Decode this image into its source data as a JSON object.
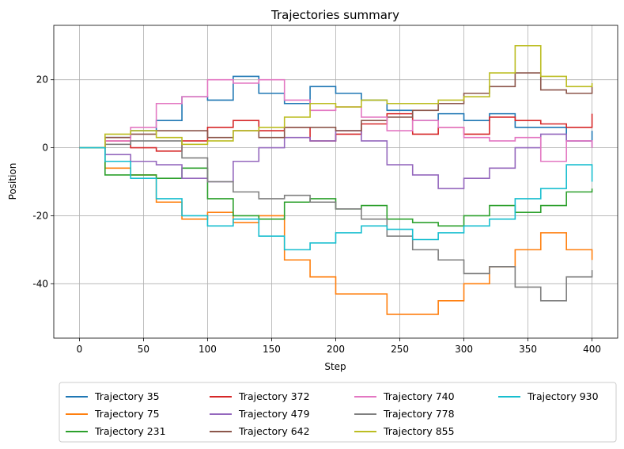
{
  "chart_data": {
    "type": "line",
    "title": "Trajectories summary",
    "xlabel": "Step",
    "ylabel": "Position",
    "xlim": [
      -20,
      420
    ],
    "ylim": [
      -56,
      36
    ],
    "xticks": [
      0,
      50,
      100,
      150,
      200,
      250,
      300,
      350,
      400
    ],
    "yticks": [
      -40,
      -20,
      0,
      20
    ],
    "grid": true,
    "step_style": true,
    "legend": {
      "placement": "below-center",
      "columns": 4
    },
    "series": [
      {
        "name": "Trajectory 35",
        "color": "#1f77b4",
        "x": [
          0,
          20,
          40,
          60,
          80,
          100,
          120,
          140,
          160,
          180,
          200,
          220,
          240,
          260,
          280,
          300,
          320,
          340,
          360,
          380,
          400
        ],
        "y": [
          0,
          3,
          5,
          8,
          15,
          14,
          21,
          16,
          13,
          18,
          16,
          14,
          11,
          8,
          10,
          8,
          10,
          6,
          6,
          2,
          5
        ]
      },
      {
        "name": "Trajectory 75",
        "color": "#ff7f0e",
        "x": [
          0,
          20,
          40,
          60,
          80,
          100,
          120,
          140,
          160,
          180,
          200,
          220,
          240,
          260,
          280,
          300,
          320,
          340,
          360,
          380,
          400
        ],
        "y": [
          0,
          -6,
          -8,
          -16,
          -21,
          -19,
          -22,
          -20,
          -33,
          -38,
          -43,
          -43,
          -49,
          -49,
          -45,
          -40,
          -35,
          -30,
          -25,
          -30,
          -33
        ]
      },
      {
        "name": "Trajectory 231",
        "color": "#2ca02c",
        "x": [
          0,
          20,
          40,
          60,
          80,
          100,
          120,
          140,
          160,
          180,
          200,
          220,
          240,
          260,
          280,
          300,
          320,
          340,
          360,
          380,
          400
        ],
        "y": [
          0,
          -8,
          -8,
          -9,
          -6,
          -15,
          -20,
          -21,
          -16,
          -15,
          -18,
          -17,
          -21,
          -22,
          -23,
          -20,
          -17,
          -19,
          -17,
          -13,
          -12
        ]
      },
      {
        "name": "Trajectory 372",
        "color": "#d62728",
        "x": [
          0,
          20,
          40,
          60,
          80,
          100,
          120,
          140,
          160,
          180,
          200,
          220,
          240,
          260,
          280,
          300,
          320,
          340,
          360,
          380,
          400
        ],
        "y": [
          0,
          2,
          0,
          -1,
          2,
          6,
          8,
          5,
          6,
          2,
          4,
          7,
          10,
          4,
          6,
          4,
          9,
          8,
          7,
          6,
          10
        ]
      },
      {
        "name": "Trajectory 479",
        "color": "#9467bd",
        "x": [
          0,
          20,
          40,
          60,
          80,
          100,
          120,
          140,
          160,
          180,
          200,
          220,
          240,
          260,
          280,
          300,
          320,
          340,
          360,
          380,
          400
        ],
        "y": [
          0,
          -2,
          -4,
          -5,
          -9,
          -10,
          -4,
          0,
          3,
          2,
          5,
          2,
          -5,
          -8,
          -12,
          -9,
          -6,
          0,
          4,
          2,
          0
        ]
      },
      {
        "name": "Trajectory 642",
        "color": "#8c564b",
        "x": [
          0,
          20,
          40,
          60,
          80,
          100,
          120,
          140,
          160,
          180,
          200,
          220,
          240,
          260,
          280,
          300,
          320,
          340,
          360,
          380,
          400
        ],
        "y": [
          0,
          3,
          4,
          5,
          5,
          3,
          5,
          3,
          6,
          6,
          5,
          8,
          9,
          11,
          13,
          16,
          18,
          22,
          17,
          16,
          18
        ]
      },
      {
        "name": "Trajectory 740",
        "color": "#e377c2",
        "x": [
          0,
          20,
          40,
          60,
          80,
          100,
          120,
          140,
          160,
          180,
          200,
          220,
          240,
          260,
          280,
          300,
          320,
          340,
          360,
          380,
          400
        ],
        "y": [
          0,
          2,
          6,
          13,
          15,
          20,
          19,
          20,
          14,
          11,
          12,
          9,
          5,
          8,
          6,
          3,
          2,
          3,
          -4,
          2,
          0
        ]
      },
      {
        "name": "Trajectory 778",
        "color": "#7f7f7f",
        "x": [
          0,
          20,
          40,
          60,
          80,
          100,
          120,
          140,
          160,
          180,
          200,
          220,
          240,
          260,
          280,
          300,
          320,
          340,
          360,
          380,
          400
        ],
        "y": [
          0,
          1,
          2,
          2,
          -3,
          -10,
          -13,
          -15,
          -14,
          -16,
          -18,
          -21,
          -26,
          -30,
          -33,
          -37,
          -35,
          -41,
          -45,
          -38,
          -36
        ]
      },
      {
        "name": "Trajectory 855",
        "color": "#bcbd22",
        "x": [
          0,
          20,
          40,
          60,
          80,
          100,
          120,
          140,
          160,
          180,
          200,
          220,
          240,
          260,
          280,
          300,
          320,
          340,
          360,
          380,
          400
        ],
        "y": [
          0,
          4,
          5,
          3,
          1,
          2,
          5,
          6,
          9,
          13,
          12,
          14,
          13,
          13,
          14,
          15,
          22,
          30,
          21,
          18,
          19
        ]
      },
      {
        "name": "Trajectory 930",
        "color": "#17becf",
        "x": [
          0,
          20,
          40,
          60,
          80,
          100,
          120,
          140,
          160,
          180,
          200,
          220,
          240,
          260,
          280,
          300,
          320,
          340,
          360,
          380,
          400
        ],
        "y": [
          0,
          -4,
          -9,
          -15,
          -20,
          -23,
          -21,
          -26,
          -30,
          -28,
          -25,
          -23,
          -24,
          -27,
          -25,
          -23,
          -21,
          -15,
          -12,
          -5,
          -10
        ]
      }
    ]
  }
}
